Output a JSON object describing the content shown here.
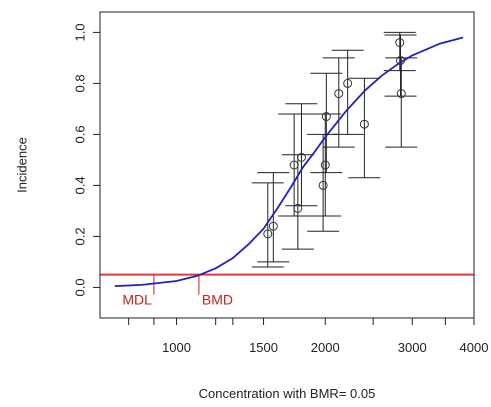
{
  "chart_data": {
    "type": "scatter",
    "xlabel": "Concentration with BMR= 0.05",
    "ylabel": "Incidence",
    "x_scale": "log",
    "xlim": [
      700,
      4000
    ],
    "ylim": [
      -0.12,
      1.08
    ],
    "x_ticks": [
      1000,
      1500,
      2000,
      3000,
      4000
    ],
    "x_minor_ticks": [
      800,
      900,
      1200,
      1300,
      2500,
      3500
    ],
    "y_ticks": [
      0.0,
      0.2,
      0.4,
      0.6,
      0.8,
      1.0
    ],
    "grid": false,
    "legend": "none",
    "points": [
      {
        "x": 1530,
        "y": 0.21,
        "lo": 0.08,
        "hi": 0.41
      },
      {
        "x": 1570,
        "y": 0.24,
        "lo": 0.1,
        "hi": 0.45
      },
      {
        "x": 1730,
        "y": 0.48,
        "lo": 0.28,
        "hi": 0.68
      },
      {
        "x": 1760,
        "y": 0.31,
        "lo": 0.15,
        "hi": 0.52
      },
      {
        "x": 1790,
        "y": 0.51,
        "lo": 0.32,
        "hi": 0.72
      },
      {
        "x": 1980,
        "y": 0.4,
        "lo": 0.22,
        "hi": 0.6
      },
      {
        "x": 2000,
        "y": 0.48,
        "lo": 0.28,
        "hi": 0.68
      },
      {
        "x": 2010,
        "y": 0.67,
        "lo": 0.45,
        "hi": 0.84
      },
      {
        "x": 2130,
        "y": 0.76,
        "lo": 0.55,
        "hi": 0.9
      },
      {
        "x": 2220,
        "y": 0.8,
        "lo": 0.6,
        "hi": 0.93
      },
      {
        "x": 2400,
        "y": 0.64,
        "lo": 0.43,
        "hi": 0.82
      },
      {
        "x": 2830,
        "y": 0.96,
        "lo": 0.85,
        "hi": 1.0
      },
      {
        "x": 2840,
        "y": 0.89,
        "lo": 0.75,
        "hi": 0.99
      },
      {
        "x": 2850,
        "y": 0.76,
        "lo": 0.55,
        "hi": 0.9
      }
    ],
    "fit_curve": {
      "color": "#2222bb",
      "points": [
        [
          750,
          0.005
        ],
        [
          850,
          0.01
        ],
        [
          1000,
          0.025
        ],
        [
          1100,
          0.045
        ],
        [
          1200,
          0.075
        ],
        [
          1300,
          0.115
        ],
        [
          1400,
          0.17
        ],
        [
          1500,
          0.23
        ],
        [
          1600,
          0.31
        ],
        [
          1700,
          0.39
        ],
        [
          1800,
          0.47
        ],
        [
          1900,
          0.53
        ],
        [
          2000,
          0.59
        ],
        [
          2200,
          0.69
        ],
        [
          2400,
          0.77
        ],
        [
          2600,
          0.83
        ],
        [
          2800,
          0.875
        ],
        [
          3000,
          0.91
        ],
        [
          3400,
          0.955
        ],
        [
          3800,
          0.98
        ]
      ]
    },
    "bmr_line": {
      "y": 0.05,
      "color": "#ee3333"
    },
    "annotations": [
      {
        "text": "MDL",
        "x": 900,
        "color": "#cc2222"
      },
      {
        "text": "BMD",
        "x": 1110,
        "color": "#cc2222"
      }
    ],
    "error_bar_color": "#222222"
  }
}
